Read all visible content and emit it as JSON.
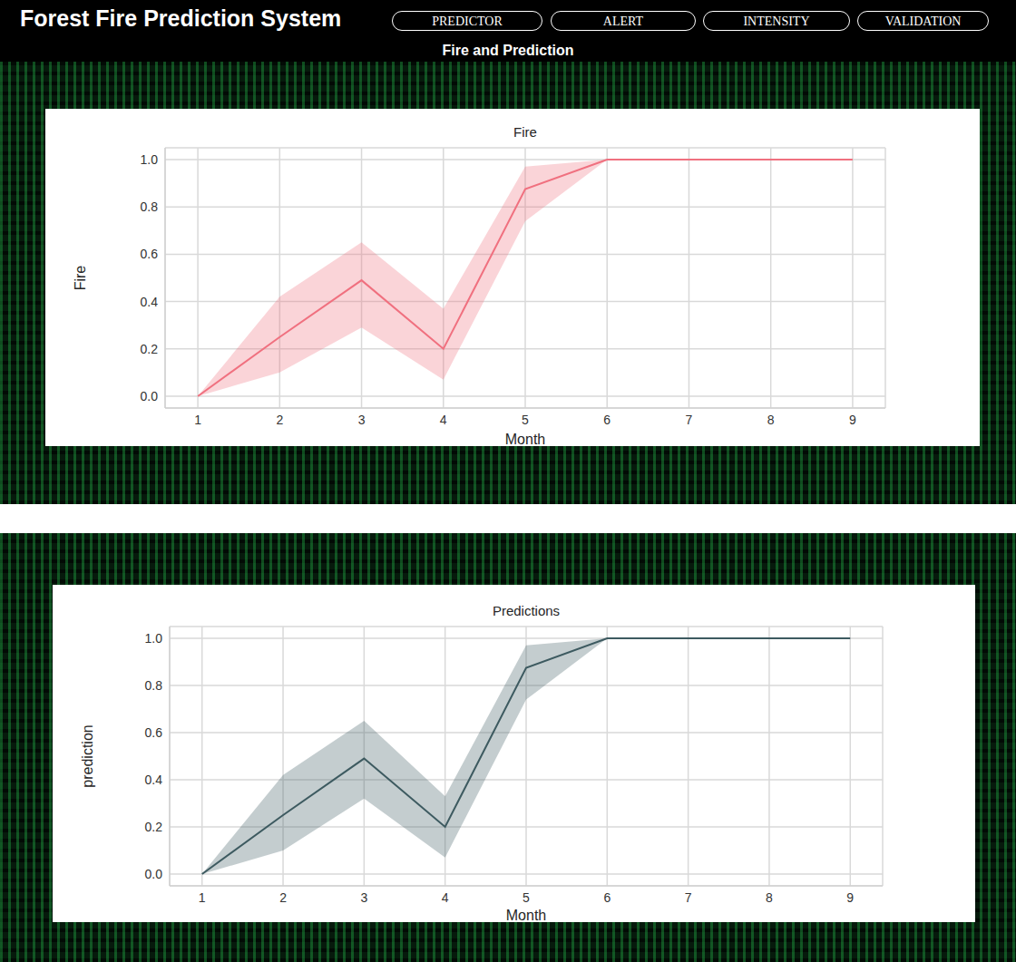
{
  "header": {
    "title": "Forest Fire Prediction System",
    "buttons": [
      "PREDICTOR",
      "ALERT",
      "INTENSITY",
      "VALIDATION"
    ],
    "subtitle": "Fire and Prediction"
  },
  "chart_data": [
    {
      "type": "line",
      "title": "Fire",
      "x_label": "Month",
      "y_label": "Fire",
      "x": [
        1,
        2,
        3,
        4,
        5,
        6,
        7,
        8,
        9
      ],
      "series": [
        {
          "name": "Fire",
          "color": "#f0707f",
          "values": [
            0,
            0.25,
            0.49,
            0.2,
            0.875,
            1,
            1,
            1,
            1
          ],
          "ci_lower": [
            0,
            0.1,
            0.29,
            0.07,
            0.74,
            1,
            1,
            1,
            1
          ],
          "ci_upper": [
            0,
            0.42,
            0.65,
            0.37,
            0.97,
            1,
            1,
            1,
            1
          ]
        }
      ],
      "xlim": [
        0.6,
        9.4
      ],
      "xticks": [
        1,
        2,
        3,
        4,
        5,
        6,
        7,
        8,
        9
      ],
      "ylim": [
        -0.05,
        1.05
      ],
      "yticks": [
        {
          "value": 0,
          "label": "0.0"
        },
        0.2,
        0.4,
        0.6,
        0.8,
        {
          "value": 1,
          "label": "1.0"
        }
      ],
      "grid": true
    },
    {
      "type": "line",
      "title": "Predictions",
      "x_label": "Month",
      "y_label": "prediction",
      "x": [
        1,
        2,
        3,
        4,
        5,
        6,
        7,
        8,
        9
      ],
      "series": [
        {
          "name": "prediction",
          "color": "#3d5a60",
          "values": [
            0,
            0.25,
            0.49,
            0.2,
            0.875,
            1,
            1,
            1,
            1
          ],
          "ci_lower": [
            0,
            0.1,
            0.32,
            0.07,
            0.74,
            1,
            1,
            1,
            1
          ],
          "ci_upper": [
            0,
            0.42,
            0.65,
            0.33,
            0.97,
            1,
            1,
            1,
            1
          ]
        }
      ],
      "xlim": [
        0.6,
        9.4
      ],
      "xticks": [
        1,
        2,
        3,
        4,
        5,
        6,
        7,
        8,
        9
      ],
      "ylim": [
        -0.05,
        1.05
      ],
      "yticks": [
        {
          "value": 0,
          "label": "0.0"
        },
        0.2,
        0.4,
        0.6,
        0.8,
        {
          "value": 1,
          "label": "1.0"
        }
      ],
      "grid": true
    }
  ]
}
